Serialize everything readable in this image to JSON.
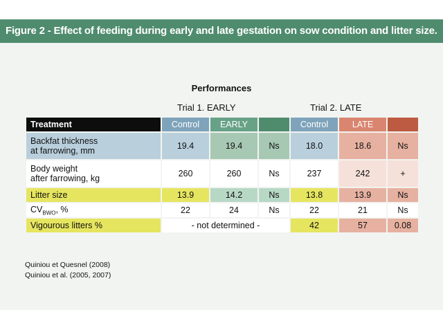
{
  "figure": {
    "title": "Figure 2 - Effect of feeding during early and late gestation on sow condition and litter size."
  },
  "table": {
    "caption": "Performances",
    "trial1_label": "Trial 1. EARLY",
    "trial2_label": "Trial 2. LATE",
    "header": {
      "treatment": "Treatment",
      "t1_control": "Control",
      "t1_early": "EARLY",
      "t2_control": "Control",
      "t2_late": "LATE"
    },
    "rows": [
      {
        "label_line1": "Backfat thickness",
        "label_line2": "at farrowing, mm",
        "t1_control": "19.4",
        "t1_early": "19.4",
        "t1_sig": "Ns",
        "t2_control": "18.0",
        "t2_late": "18.6",
        "t2_sig": "Ns"
      },
      {
        "label_line1": "Body weight",
        "label_line2": "after farrowing, kg",
        "t1_control": "260",
        "t1_early": "260",
        "t1_sig": "Ns",
        "t2_control": "237",
        "t2_late": "242",
        "t2_sig": "+"
      },
      {
        "label": "Litter size",
        "t1_control": "13.9",
        "t1_early": "14.2",
        "t1_sig": "Ns",
        "t2_control": "13.8",
        "t2_late": "13.9",
        "t2_sig": "Ns"
      },
      {
        "label_main": "CV",
        "label_sub": "BWO",
        "label_tail": ", %",
        "t1_control": "22",
        "t1_early": "24",
        "t1_sig": "Ns",
        "t2_control": "22",
        "t2_late": "21",
        "t2_sig": "Ns"
      },
      {
        "label": "Vigourous litters %",
        "t1_merged": "- not determined -",
        "t2_control": "42",
        "t2_late": "57",
        "t2_sig": "0.08"
      }
    ]
  },
  "references": [
    "Quiniou et Quesnel (2008)",
    "Quiniou et al. (2005, 2007)"
  ]
}
